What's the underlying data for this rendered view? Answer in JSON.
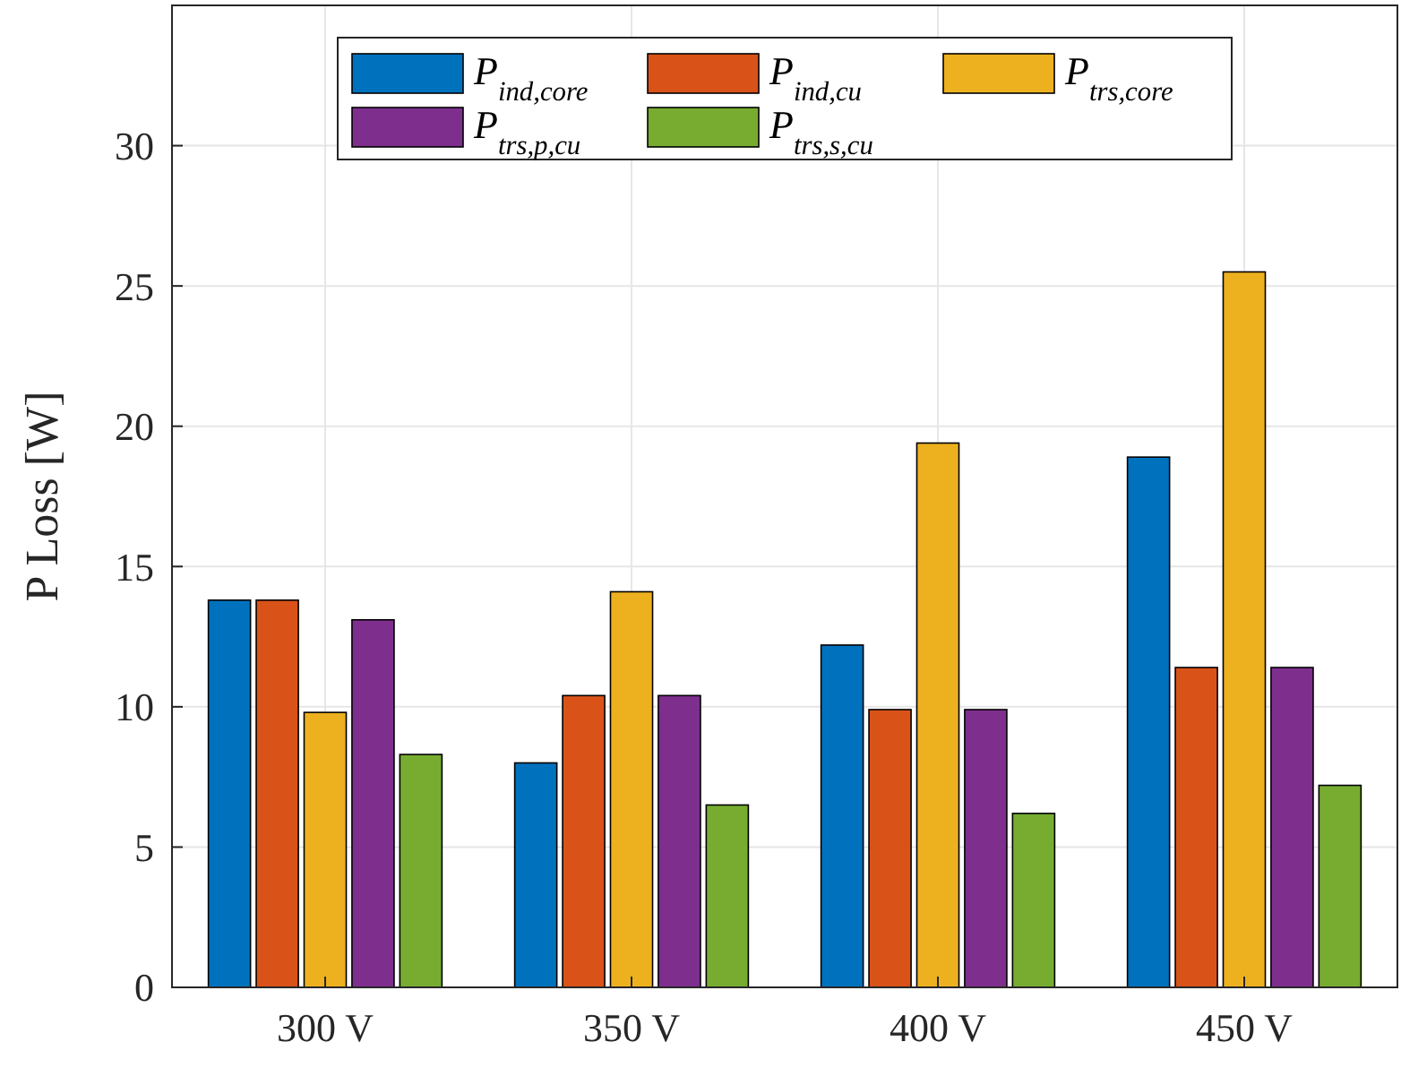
{
  "chart_data": {
    "type": "bar",
    "ylabel": "P Loss [W]",
    "categories": [
      "300 V",
      "350 V",
      "400 V",
      "450 V"
    ],
    "series": [
      {
        "name": "P$_{ind,core}$",
        "color": "#0072bd",
        "values": [
          13.8,
          8.0,
          12.2,
          18.9
        ]
      },
      {
        "name": "P$_{ind,cu}$",
        "color": "#d95319",
        "values": [
          13.8,
          10.4,
          9.9,
          11.4
        ]
      },
      {
        "name": "P$_{trs,core}$",
        "color": "#edb120",
        "values": [
          9.8,
          14.1,
          19.4,
          25.5
        ]
      },
      {
        "name": "P$_{trs,p,cu}$",
        "color": "#7e2f8e",
        "values": [
          13.1,
          10.4,
          9.9,
          11.4
        ]
      },
      {
        "name": "P$_{trs,s,cu}$",
        "color": "#77ac30",
        "values": [
          8.3,
          6.5,
          6.2,
          7.2
        ]
      }
    ],
    "ylim": [
      0,
      35
    ],
    "yticks": [
      0,
      5,
      10,
      15,
      20,
      25,
      30
    ],
    "grid": true,
    "legend": "top"
  }
}
